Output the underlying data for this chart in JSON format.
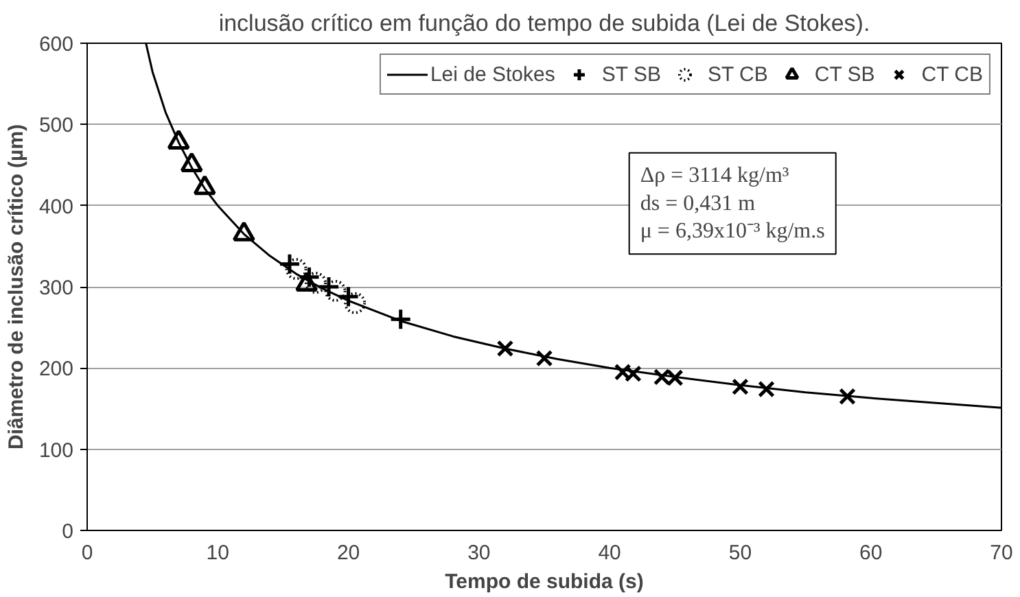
{
  "chart_data": {
    "type": "scatter",
    "title": "inclusão crítico em função do tempo de subida (Lei de Stokes).",
    "xlabel": "Tempo de subida (s)",
    "ylabel": "Diâmetro de inclusão crítico (µm)",
    "xlim": [
      0,
      70
    ],
    "ylim": [
      0,
      600
    ],
    "xticks": [
      0,
      10,
      20,
      30,
      40,
      50,
      60,
      70
    ],
    "yticks": [
      0,
      100,
      200,
      300,
      400,
      500,
      600
    ],
    "grid": "y",
    "legend": "top right",
    "annotations": [
      "Δρ = 3114 kg/m³\nds = 0,431 m\nμ = 6,39x10⁻³ kg/m.s"
    ],
    "series": [
      {
        "name": "Lei de Stokes",
        "type": "line",
        "color": "#000000",
        "line_style": "solid",
        "x": [
          4.5,
          5,
          6,
          7,
          8,
          9,
          10,
          12,
          14,
          16,
          18,
          20,
          24,
          28,
          32,
          36,
          40,
          45,
          50,
          55,
          60,
          65,
          70
        ],
        "values": [
          600,
          565,
          515,
          478,
          447,
          421,
          400,
          365,
          338,
          316,
          298,
          283,
          258,
          239,
          224,
          211,
          200,
          189,
          179,
          170,
          163,
          157,
          151
        ]
      },
      {
        "name": "ST SB",
        "color": "#000000",
        "marker": "cross",
        "x": [
          15.5,
          17,
          18.5,
          20,
          24
        ],
        "values": [
          328,
          312,
          300,
          288,
          260
        ]
      },
      {
        "name": "ST CB",
        "color": "#000000",
        "marker": "circle",
        "line_style": "dotted",
        "x": [
          16,
          17.5,
          19,
          20.5
        ],
        "values": [
          322,
          305,
          295,
          280
        ]
      },
      {
        "name": "CT SB",
        "color": "#000000",
        "marker": "triangle",
        "x": [
          7,
          8,
          9,
          12,
          16.8
        ],
        "values": [
          478,
          450,
          422,
          365,
          303
        ]
      },
      {
        "name": "CT CB",
        "color": "#000000",
        "marker": "x",
        "x": [
          32,
          35,
          41,
          41.8,
          44,
          45,
          50,
          52,
          58.2
        ],
        "values": [
          224,
          212,
          195,
          193,
          189,
          188,
          177,
          174,
          165
        ]
      }
    ]
  }
}
